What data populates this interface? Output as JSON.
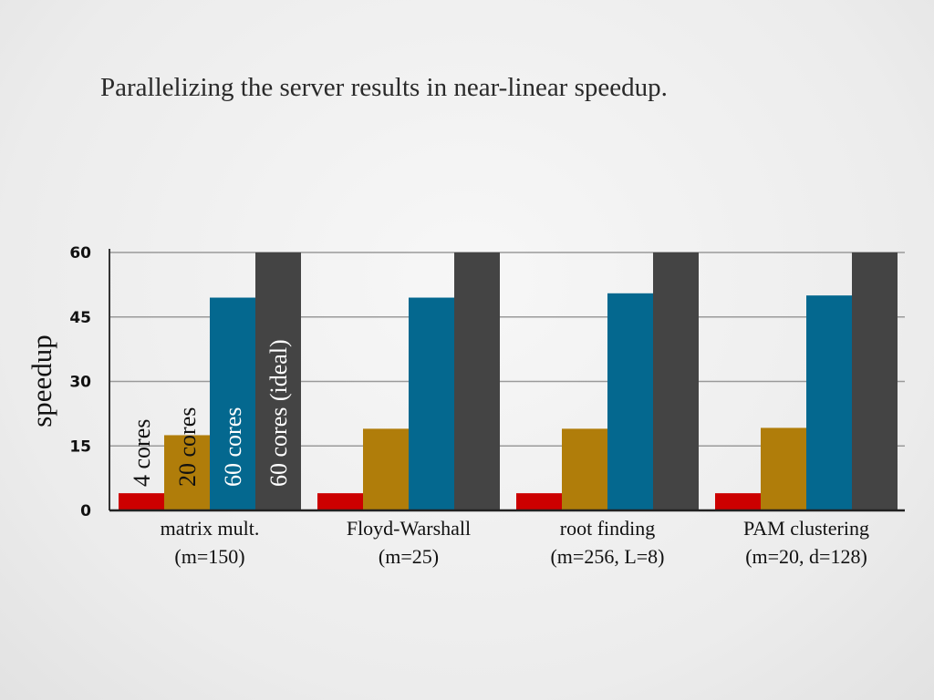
{
  "slide": {
    "title": "Parallelizing the server results in near-linear speedup."
  },
  "chart_data": {
    "type": "bar",
    "title": "",
    "xlabel": "",
    "ylabel": "speedup",
    "ylim": [
      0,
      60
    ],
    "yticks": [
      0,
      15,
      30,
      45,
      60
    ],
    "grid": true,
    "categories": [
      [
        "matrix mult.",
        "(m=150)"
      ],
      [
        "Floyd-Warshall",
        "(m=25)"
      ],
      [
        "root finding",
        "(m=256, L=8)"
      ],
      [
        "PAM clustering",
        "(m=20, d=128)"
      ]
    ],
    "series": [
      {
        "name": "4 cores",
        "color": "#cc0000",
        "label_color": "#111111",
        "values": [
          4,
          4,
          4,
          4
        ]
      },
      {
        "name": "20 cores",
        "color": "#b07d0a",
        "label_color": "#111111",
        "values": [
          17.5,
          19,
          19,
          19.2
        ]
      },
      {
        "name": "60 cores",
        "color": "#04688f",
        "label_color": "#ffffff",
        "values": [
          49.5,
          49.5,
          50.5,
          50
        ]
      },
      {
        "name": "60 cores (ideal)",
        "color": "#444444",
        "label_color": "#ffffff",
        "values": [
          60,
          60,
          60,
          60
        ]
      }
    ],
    "legend_placement": "inside-first-group-rotated"
  }
}
